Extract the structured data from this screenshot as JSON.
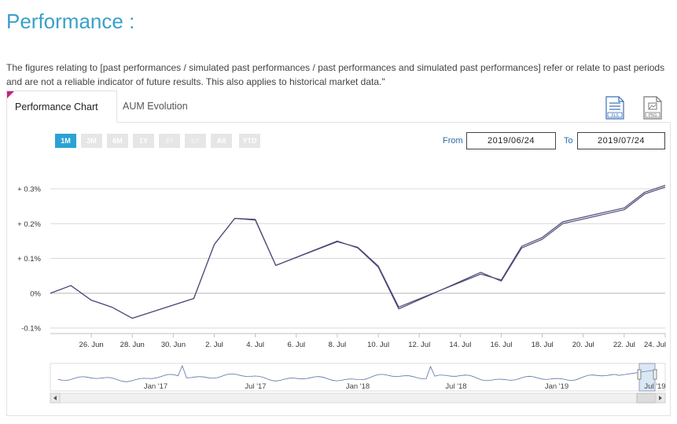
{
  "page": {
    "title": "Performance :",
    "disclaimer": "The figures relating to [past performances / simulated past performances / past performances and simulated past performances] refer or relate to past periods and are not a reliable indicator of future results. This also applies to historical market data.\""
  },
  "tabs": [
    {
      "label": "Performance Chart",
      "active": true
    },
    {
      "label": "AUM Evolution",
      "active": false
    }
  ],
  "downloads": [
    {
      "name": "xls-icon",
      "label": "XLS"
    },
    {
      "name": "png-icon",
      "label": "PNG"
    }
  ],
  "range_buttons": [
    {
      "label": "1M",
      "active": true,
      "enabled": true
    },
    {
      "label": "3M",
      "active": false,
      "enabled": true
    },
    {
      "label": "6M",
      "active": false,
      "enabled": true
    },
    {
      "label": "1Y",
      "active": false,
      "enabled": true
    },
    {
      "label": "3Y",
      "active": false,
      "enabled": false
    },
    {
      "label": "5Y",
      "active": false,
      "enabled": false
    },
    {
      "label": "All",
      "active": false,
      "enabled": true
    },
    {
      "label": "YTD",
      "active": false,
      "enabled": true
    }
  ],
  "date_range": {
    "from_label": "From",
    "from_value": "2019/06/24",
    "to_label": "To",
    "to_value": "2019/07/24"
  },
  "colors": {
    "title": "#3aa0c8",
    "active_button": "#2aa3d4",
    "series_line": "#4a4a78",
    "tab_corner": "#c8217c"
  },
  "chart_data": {
    "type": "line",
    "ylim": [
      -0.1,
      0.3
    ],
    "yticks": [
      {
        "value": 0.3,
        "label": "+ 0.3%"
      },
      {
        "value": 0.2,
        "label": "+ 0.2%"
      },
      {
        "value": 0.1,
        "label": "+ 0.1%"
      },
      {
        "value": 0.0,
        "label": "0%"
      },
      {
        "value": -0.1,
        "label": "-0.1%"
      }
    ],
    "xticks": [
      "26. Jun",
      "28. Jun",
      "30. Jun",
      "2. Jul",
      "4. Jul",
      "6. Jul",
      "8. Jul",
      "10. Jul",
      "12. Jul",
      "14. Jul",
      "16. Jul",
      "18. Jul",
      "20. Jul",
      "22. Jul",
      "24. Jul"
    ],
    "grid": true,
    "series": [
      {
        "x": [
          "2019-06-24",
          "2019-06-25",
          "2019-06-26",
          "2019-06-27",
          "2019-06-28",
          "2019-07-01",
          "2019-07-02",
          "2019-07-03",
          "2019-07-04",
          "2019-07-05",
          "2019-07-08",
          "2019-07-09",
          "2019-07-10",
          "2019-07-11",
          "2019-07-15",
          "2019-07-16",
          "2019-07-17",
          "2019-07-18",
          "2019-07-19",
          "2019-07-22",
          "2019-07-23",
          "2019-07-24"
        ],
        "values": [
          0.0,
          0.022,
          -0.02,
          -0.04,
          -0.072,
          -0.015,
          0.14,
          0.215,
          0.21,
          0.08,
          0.15,
          0.13,
          0.075,
          -0.045,
          0.06,
          0.035,
          0.13,
          0.155,
          0.2,
          0.24,
          0.285,
          0.305
        ]
      },
      {
        "x": [
          "2019-06-24",
          "2019-06-25",
          "2019-06-26",
          "2019-06-27",
          "2019-06-28",
          "2019-07-01",
          "2019-07-02",
          "2019-07-03",
          "2019-07-04",
          "2019-07-05",
          "2019-07-08",
          "2019-07-09",
          "2019-07-10",
          "2019-07-11",
          "2019-07-15",
          "2019-07-16",
          "2019-07-17",
          "2019-07-18",
          "2019-07-19",
          "2019-07-22",
          "2019-07-23",
          "2019-07-24"
        ],
        "values": [
          0.0,
          0.022,
          -0.02,
          -0.04,
          -0.072,
          -0.015,
          0.14,
          0.215,
          0.212,
          0.08,
          0.148,
          0.132,
          0.078,
          -0.04,
          0.055,
          0.038,
          0.135,
          0.16,
          0.205,
          0.245,
          0.29,
          0.31
        ]
      }
    ],
    "navigator": {
      "labels": [
        "Jan '17",
        "Jul '17",
        "Jan '18",
        "Jul '18",
        "Jan '19",
        "Jul '19"
      ]
    }
  }
}
